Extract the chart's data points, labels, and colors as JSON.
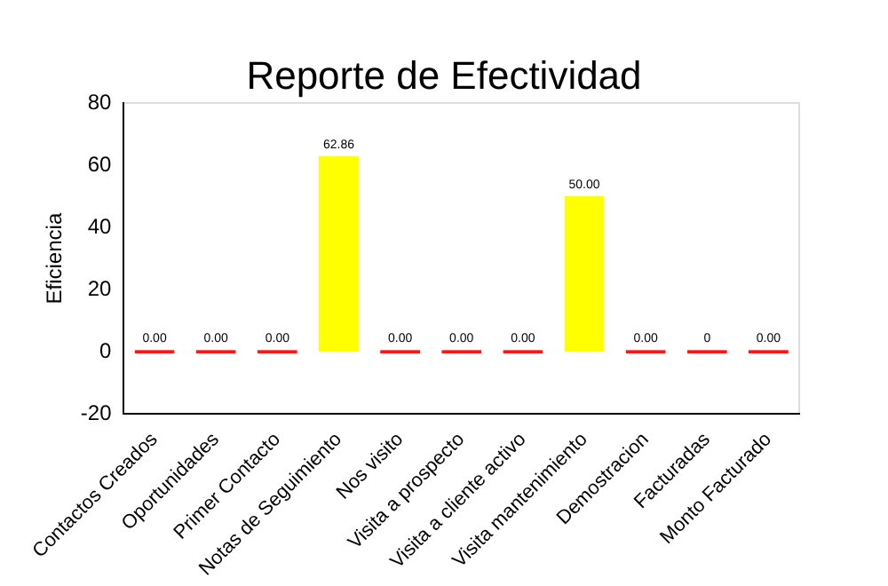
{
  "chart_data": {
    "type": "bar",
    "title": "Reporte de Efectividad",
    "ylabel": "Eficiencia",
    "categories": [
      "Contactos Creados",
      "Oportunidades",
      "Primer Contacto",
      "Notas de Seguimiento",
      "Nos visito",
      "Visita a prospecto",
      "Visita a cliente activo",
      "Visita mantenimiento",
      "Demostracion",
      "Facturadas",
      "Monto Facturado"
    ],
    "values": [
      0,
      0,
      0,
      62.86,
      0,
      0,
      0,
      50,
      0,
      0,
      0
    ],
    "colors": [
      "#ff0000",
      "#ff0000",
      "#ff0000",
      "#ffff00",
      "#ff0000",
      "#ff0000",
      "#ff0000",
      "#ffff00",
      "#ff0000",
      "#ff0000",
      "#ff0000"
    ],
    "value_labels": [
      "0.00",
      "0.00",
      "0.00",
      "62.86",
      "0.00",
      "0.00",
      "0.00",
      "50.00",
      "0.00",
      "0",
      "0.00"
    ],
    "ylim": [
      -20,
      80
    ],
    "yticks": [
      -20,
      0,
      20,
      40,
      60,
      80
    ],
    "grid": false,
    "legend": false
  }
}
